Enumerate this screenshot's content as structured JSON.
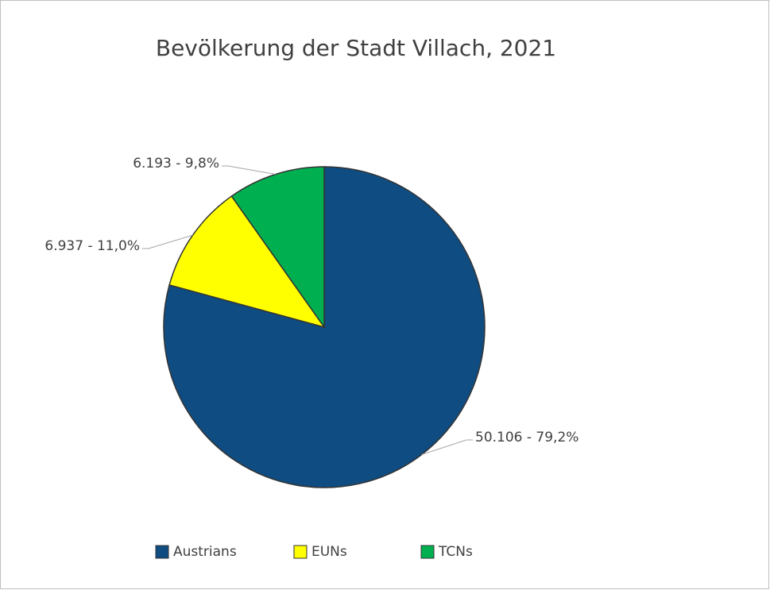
{
  "chart_data": {
    "type": "pie",
    "title": "Bevölkerung der Stadt Villach, 2021",
    "categories": [
      "Austrians",
      "EUNs",
      "TCNs"
    ],
    "values": [
      50106,
      6937,
      6193
    ],
    "value_labels": [
      "50.106  - 79,2%",
      "6.937  - 11,0%",
      "6.193  - 9,8%"
    ],
    "colors": [
      "#0f4c81",
      "#ffff00",
      "#00b050"
    ],
    "legend": "bottom"
  }
}
